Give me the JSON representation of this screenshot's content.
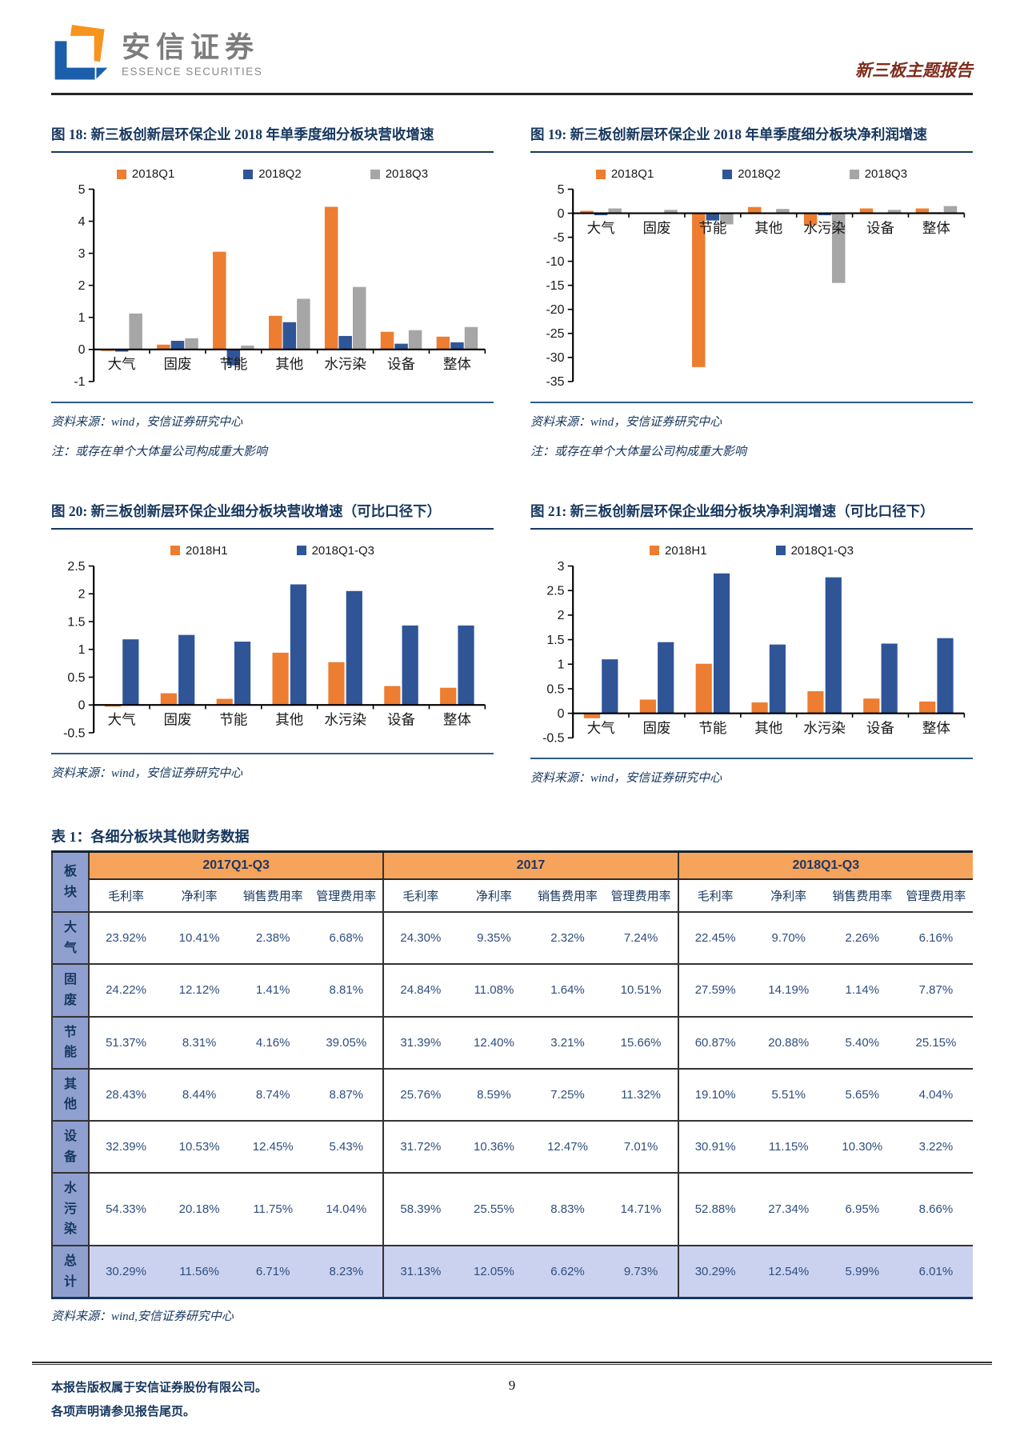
{
  "header": {
    "brand_cn": "安信证券",
    "brand_en": "ESSENCE SECURITIES",
    "report_tag": "新三板主题报告"
  },
  "figures": [
    {
      "caption": "图 18: 新三板创新层环保企业 2018 年单季度细分板块营收增速",
      "source": "资料来源：wind，安信证券研究中心",
      "note": "注：或存在单个大体量公司构成重大影响"
    },
    {
      "caption": "图 19: 新三板创新层环保企业 2018 年单季度细分板块净利润增速",
      "source": "资料来源：wind，安信证券研究中心",
      "note": "注：或存在单个大体量公司构成重大影响"
    },
    {
      "caption": "图 20: 新三板创新层环保企业细分板块营收增速（可比口径下）",
      "source": "资料来源：wind，安信证券研究中心"
    },
    {
      "caption": "图 21: 新三板创新层环保企业细分板块净利润增速（可比口径下）",
      "source": "资料来源：wind，安信证券研究中心"
    }
  ],
  "chart_data": [
    {
      "type": "bar",
      "categories": [
        "大气",
        "固废",
        "节能",
        "其他",
        "水污染",
        "设备",
        "整体"
      ],
      "series": [
        {
          "name": "2018Q1",
          "color": "#ED7D31",
          "values": [
            -0.05,
            0.15,
            3.05,
            1.05,
            4.45,
            0.55,
            0.4
          ]
        },
        {
          "name": "2018Q2",
          "color": "#2F5597",
          "values": [
            -0.07,
            0.27,
            -0.5,
            0.85,
            0.42,
            0.18,
            0.22
          ]
        },
        {
          "name": "2018Q3",
          "color": "#A6A6A6",
          "values": [
            1.12,
            0.35,
            0.12,
            1.58,
            1.95,
            0.6,
            0.7
          ]
        }
      ],
      "ylim": [
        -1,
        5
      ],
      "ytick_step": 1,
      "grid": false,
      "legend_position": "top"
    },
    {
      "type": "bar",
      "categories": [
        "大气",
        "固废",
        "节能",
        "其他",
        "水污染",
        "设备",
        "整体"
      ],
      "series": [
        {
          "name": "2018Q1",
          "color": "#ED7D31",
          "values": [
            0.5,
            0.1,
            -32.0,
            1.3,
            -2.5,
            1.0,
            1.0
          ]
        },
        {
          "name": "2018Q2",
          "color": "#2F5597",
          "values": [
            -0.4,
            0.1,
            -1.5,
            0.1,
            -0.4,
            0.1,
            0.2
          ]
        },
        {
          "name": "2018Q3",
          "color": "#A6A6A6",
          "values": [
            1.0,
            0.7,
            -2.3,
            0.9,
            -14.5,
            0.7,
            1.5
          ]
        }
      ],
      "ylim": [
        -35,
        5
      ],
      "ytick_step": 5,
      "grid": false,
      "legend_position": "top"
    },
    {
      "type": "bar",
      "categories": [
        "大气",
        "固废",
        "节能",
        "其他",
        "水污染",
        "设备",
        "整体"
      ],
      "series": [
        {
          "name": "2018H1",
          "color": "#ED7D31",
          "values": [
            -0.03,
            0.21,
            0.11,
            0.94,
            0.77,
            0.34,
            0.31
          ]
        },
        {
          "name": "2018Q1-Q3",
          "color": "#2F5597",
          "values": [
            1.18,
            1.26,
            1.14,
            2.17,
            2.05,
            1.43,
            1.43
          ]
        }
      ],
      "ylim": [
        -0.5,
        2.5
      ],
      "ytick_step": 0.5,
      "grid": false,
      "legend_position": "top"
    },
    {
      "type": "bar",
      "categories": [
        "大气",
        "固废",
        "节能",
        "其他",
        "水污染",
        "设备",
        "整体"
      ],
      "series": [
        {
          "name": "2018H1",
          "color": "#ED7D31",
          "values": [
            -0.1,
            0.28,
            1.01,
            0.22,
            0.45,
            0.3,
            0.24
          ]
        },
        {
          "name": "2018Q1-Q3",
          "color": "#2F5597",
          "values": [
            1.1,
            1.45,
            2.85,
            1.4,
            2.77,
            1.42,
            1.53
          ]
        }
      ],
      "ylim": [
        -0.5,
        3
      ],
      "ytick_step": 0.5,
      "grid": false,
      "legend_position": "top"
    }
  ],
  "table": {
    "caption": "表 1：各细分板块其他财务数据",
    "corner_label": "板块",
    "groups": [
      "2017Q1-Q3",
      "2017",
      "2018Q1-Q3"
    ],
    "sub_headers": [
      "毛利率",
      "净利率",
      "销售费用率",
      "管理费用率"
    ],
    "rows": [
      {
        "label": "大气",
        "values": [
          "23.92%",
          "10.41%",
          "2.38%",
          "6.68%",
          "24.30%",
          "9.35%",
          "2.32%",
          "7.24%",
          "22.45%",
          "9.70%",
          "2.26%",
          "6.16%"
        ]
      },
      {
        "label": "固废",
        "values": [
          "24.22%",
          "12.12%",
          "1.41%",
          "8.81%",
          "24.84%",
          "11.08%",
          "1.64%",
          "10.51%",
          "27.59%",
          "14.19%",
          "1.14%",
          "7.87%"
        ]
      },
      {
        "label": "节能",
        "values": [
          "51.37%",
          "8.31%",
          "4.16%",
          "39.05%",
          "31.39%",
          "12.40%",
          "3.21%",
          "15.66%",
          "60.87%",
          "20.88%",
          "5.40%",
          "25.15%"
        ]
      },
      {
        "label": "其他",
        "values": [
          "28.43%",
          "8.44%",
          "8.74%",
          "8.87%",
          "25.76%",
          "8.59%",
          "7.25%",
          "11.32%",
          "19.10%",
          "5.51%",
          "5.65%",
          "4.04%"
        ]
      },
      {
        "label": "设备",
        "values": [
          "32.39%",
          "10.53%",
          "12.45%",
          "5.43%",
          "31.72%",
          "10.36%",
          "12.47%",
          "7.01%",
          "30.91%",
          "11.15%",
          "10.30%",
          "3.22%"
        ]
      },
      {
        "label": "水污染",
        "values": [
          "54.33%",
          "20.18%",
          "11.75%",
          "14.04%",
          "58.39%",
          "25.55%",
          "8.83%",
          "14.71%",
          "52.88%",
          "27.34%",
          "6.95%",
          "8.66%"
        ]
      },
      {
        "label": "总计",
        "total": true,
        "values": [
          "30.29%",
          "11.56%",
          "6.71%",
          "8.23%",
          "31.13%",
          "12.05%",
          "6.62%",
          "9.73%",
          "30.29%",
          "12.54%",
          "5.99%",
          "6.01%"
        ]
      }
    ],
    "source": "资料来源：wind,安信证券研究中心"
  },
  "footer": {
    "line1": "本报告版权属于安信证券股份有限公司。",
    "line2": "各项声明请参见报告尾页。",
    "page_number": "9"
  },
  "colors": {
    "series_orange": "#ED7D31",
    "series_navy": "#2F5597",
    "series_gray": "#A6A6A6",
    "title_navy": "#17375E",
    "table_header_orange": "#F6A35B",
    "table_label_blue": "#8FA0D0",
    "total_row_bg": "#CBD2EF",
    "report_tag_red": "#7E2D1E",
    "logo_orange": "#F7941D",
    "logo_blue": "#1B5FAA"
  }
}
